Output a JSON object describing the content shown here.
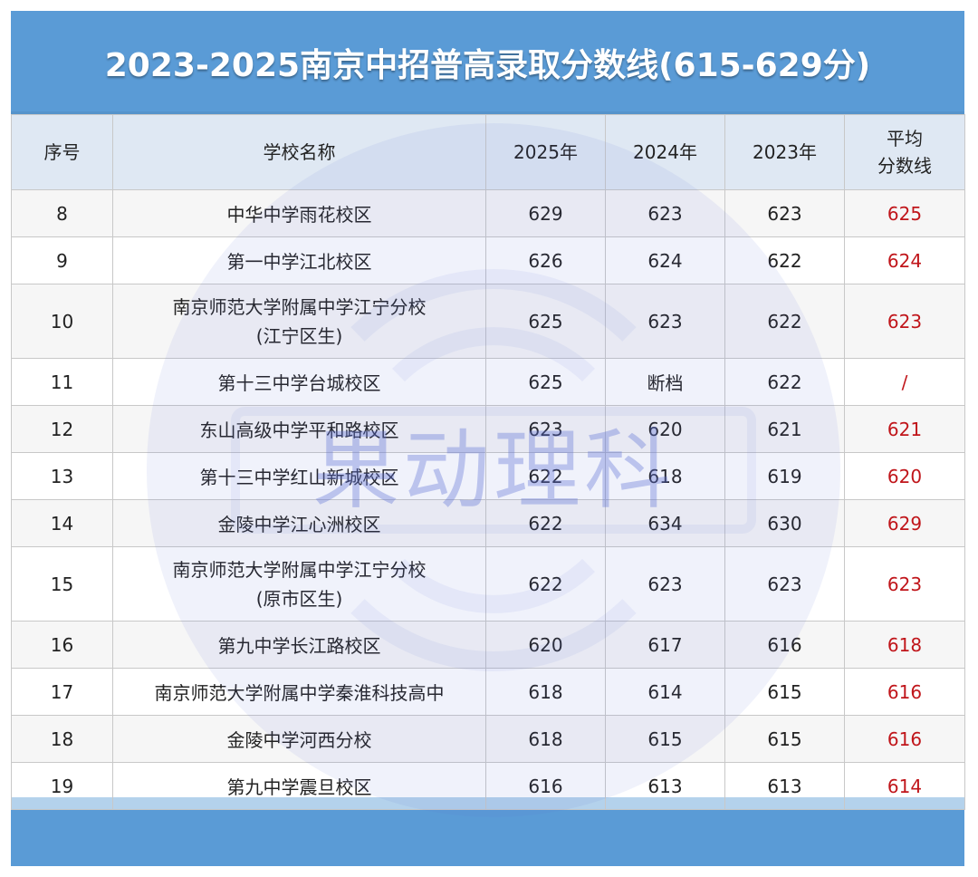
{
  "title": "2023-2025南京中招普高录取分数线(615-629分)",
  "columns": [
    "序号",
    "学校名称",
    "2025年",
    "2024年",
    "2023年"
  ],
  "avg_header": {
    "line1": "平均",
    "line2": "分数线"
  },
  "rows": [
    {
      "no": "8",
      "school": "中华中学雨花校区",
      "school2": "",
      "y2025": "629",
      "y2024": "623",
      "y2023": "623",
      "avg": "625"
    },
    {
      "no": "9",
      "school": "第一中学江北校区",
      "school2": "",
      "y2025": "626",
      "y2024": "624",
      "y2023": "622",
      "avg": "624"
    },
    {
      "no": "10",
      "school": "南京师范大学附属中学江宁分校",
      "school2": "(江宁区生)",
      "y2025": "625",
      "y2024": "623",
      "y2023": "622",
      "avg": "623"
    },
    {
      "no": "11",
      "school": "第十三中学台城校区",
      "school2": "",
      "y2025": "625",
      "y2024": "断档",
      "y2023": "622",
      "avg": "/"
    },
    {
      "no": "12",
      "school": "东山高级中学平和路校区",
      "school2": "",
      "y2025": "623",
      "y2024": "620",
      "y2023": "621",
      "avg": "621"
    },
    {
      "no": "13",
      "school": "第十三中学红山新城校区",
      "school2": "",
      "y2025": "622",
      "y2024": "618",
      "y2023": "619",
      "avg": "620"
    },
    {
      "no": "14",
      "school": "金陵中学江心洲校区",
      "school2": "",
      "y2025": "622",
      "y2024": "634",
      "y2023": "630",
      "avg": "629"
    },
    {
      "no": "15",
      "school": "南京师范大学附属中学江宁分校",
      "school2": "(原市区生)",
      "y2025": "622",
      "y2024": "623",
      "y2023": "623",
      "avg": "623"
    },
    {
      "no": "16",
      "school": "第九中学长江路校区",
      "school2": "",
      "y2025": "620",
      "y2024": "617",
      "y2023": "616",
      "avg": "618"
    },
    {
      "no": "17",
      "school": "南京师范大学附属中学秦淮科技高中",
      "school2": "",
      "y2025": "618",
      "y2024": "614",
      "y2023": "615",
      "avg": "616"
    },
    {
      "no": "18",
      "school": "金陵中学河西分校",
      "school2": "",
      "y2025": "618",
      "y2024": "615",
      "y2023": "615",
      "avg": "616"
    },
    {
      "no": "19",
      "school": "第九中学震旦校区",
      "school2": "",
      "y2025": "616",
      "y2024": "613",
      "y2023": "613",
      "avg": "614"
    }
  ],
  "watermark_text": "果动理科",
  "colors": {
    "banner": "#5a9bd6",
    "header_bg": "#dfe8f3",
    "avg_text": "#c0151a",
    "watermark": "#5b6fd6"
  }
}
